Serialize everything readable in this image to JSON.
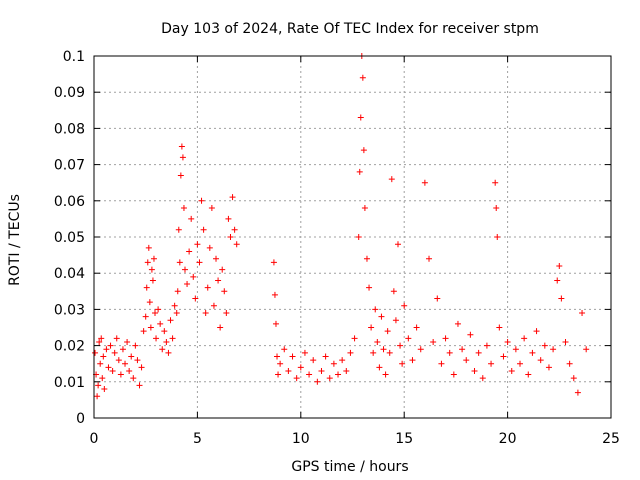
{
  "chart_data": {
    "type": "scatter",
    "title": "Day 103 of 2024, Rate Of TEC Index for receiver stpm",
    "xlabel": "GPS time / hours",
    "ylabel": "ROTI / TECUs",
    "xlim": [
      0,
      25
    ],
    "ylim": [
      0,
      0.1
    ],
    "xticks": [
      0,
      5,
      10,
      15,
      20,
      25
    ],
    "yticks": [
      0,
      0.01,
      0.02,
      0.03,
      0.04,
      0.05,
      0.06,
      0.07,
      0.08,
      0.09,
      0.1
    ],
    "grid": true,
    "legend": "none",
    "marker": "+",
    "series_color": "#ff0000",
    "series": [
      {
        "points": [
          [
            0.05,
            0.018
          ],
          [
            0.1,
            0.012
          ],
          [
            0.15,
            0.006
          ],
          [
            0.2,
            0.009
          ],
          [
            0.25,
            0.021
          ],
          [
            0.3,
            0.015
          ],
          [
            0.35,
            0.022
          ],
          [
            0.4,
            0.011
          ],
          [
            0.45,
            0.017
          ],
          [
            0.5,
            0.008
          ],
          [
            0.6,
            0.019
          ],
          [
            0.7,
            0.014
          ],
          [
            0.8,
            0.02
          ],
          [
            0.9,
            0.013
          ],
          [
            1.0,
            0.018
          ],
          [
            1.1,
            0.022
          ],
          [
            1.2,
            0.016
          ],
          [
            1.3,
            0.012
          ],
          [
            1.4,
            0.019
          ],
          [
            1.5,
            0.015
          ],
          [
            1.6,
            0.021
          ],
          [
            1.7,
            0.013
          ],
          [
            1.8,
            0.017
          ],
          [
            1.9,
            0.011
          ],
          [
            2.0,
            0.02
          ],
          [
            2.1,
            0.016
          ],
          [
            2.2,
            0.009
          ],
          [
            2.3,
            0.014
          ],
          [
            2.4,
            0.024
          ],
          [
            2.5,
            0.028
          ],
          [
            2.55,
            0.036
          ],
          [
            2.6,
            0.043
          ],
          [
            2.65,
            0.047
          ],
          [
            2.7,
            0.032
          ],
          [
            2.75,
            0.025
          ],
          [
            2.8,
            0.041
          ],
          [
            2.85,
            0.038
          ],
          [
            2.9,
            0.044
          ],
          [
            2.95,
            0.029
          ],
          [
            3.0,
            0.022
          ],
          [
            3.1,
            0.03
          ],
          [
            3.2,
            0.026
          ],
          [
            3.3,
            0.019
          ],
          [
            3.4,
            0.024
          ],
          [
            3.5,
            0.021
          ],
          [
            3.6,
            0.018
          ],
          [
            3.7,
            0.027
          ],
          [
            3.8,
            0.022
          ],
          [
            3.9,
            0.031
          ],
          [
            4.0,
            0.029
          ],
          [
            4.05,
            0.035
          ],
          [
            4.1,
            0.052
          ],
          [
            4.15,
            0.043
          ],
          [
            4.2,
            0.067
          ],
          [
            4.25,
            0.075
          ],
          [
            4.3,
            0.072
          ],
          [
            4.35,
            0.058
          ],
          [
            4.4,
            0.041
          ],
          [
            4.5,
            0.037
          ],
          [
            4.6,
            0.046
          ],
          [
            4.7,
            0.055
          ],
          [
            4.8,
            0.039
          ],
          [
            4.9,
            0.033
          ],
          [
            5.0,
            0.048
          ],
          [
            5.1,
            0.043
          ],
          [
            5.2,
            0.06
          ],
          [
            5.3,
            0.052
          ],
          [
            5.4,
            0.029
          ],
          [
            5.5,
            0.036
          ],
          [
            5.6,
            0.047
          ],
          [
            5.7,
            0.058
          ],
          [
            5.8,
            0.031
          ],
          [
            5.9,
            0.044
          ],
          [
            6.0,
            0.038
          ],
          [
            6.1,
            0.025
          ],
          [
            6.2,
            0.041
          ],
          [
            6.3,
            0.035
          ],
          [
            6.4,
            0.029
          ],
          [
            6.5,
            0.055
          ],
          [
            6.6,
            0.05
          ],
          [
            6.7,
            0.061
          ],
          [
            6.8,
            0.052
          ],
          [
            6.9,
            0.048
          ],
          [
            8.7,
            0.043
          ],
          [
            8.75,
            0.034
          ],
          [
            8.8,
            0.026
          ],
          [
            8.85,
            0.017
          ],
          [
            8.9,
            0.012
          ],
          [
            9.0,
            0.015
          ],
          [
            9.2,
            0.019
          ],
          [
            9.4,
            0.013
          ],
          [
            9.6,
            0.017
          ],
          [
            9.8,
            0.011
          ],
          [
            10.0,
            0.014
          ],
          [
            10.2,
            0.018
          ],
          [
            10.4,
            0.012
          ],
          [
            10.6,
            0.016
          ],
          [
            10.8,
            0.01
          ],
          [
            11.0,
            0.013
          ],
          [
            11.2,
            0.017
          ],
          [
            11.4,
            0.011
          ],
          [
            11.6,
            0.015
          ],
          [
            11.8,
            0.012
          ],
          [
            12.0,
            0.016
          ],
          [
            12.2,
            0.013
          ],
          [
            12.4,
            0.018
          ],
          [
            12.6,
            0.022
          ],
          [
            12.8,
            0.05
          ],
          [
            12.85,
            0.068
          ],
          [
            12.9,
            0.083
          ],
          [
            12.95,
            0.1
          ],
          [
            13.0,
            0.094
          ],
          [
            13.05,
            0.074
          ],
          [
            13.1,
            0.058
          ],
          [
            13.2,
            0.044
          ],
          [
            13.3,
            0.036
          ],
          [
            13.4,
            0.025
          ],
          [
            13.5,
            0.018
          ],
          [
            13.6,
            0.03
          ],
          [
            13.7,
            0.021
          ],
          [
            13.8,
            0.014
          ],
          [
            13.9,
            0.028
          ],
          [
            14.0,
            0.019
          ],
          [
            14.1,
            0.012
          ],
          [
            14.2,
            0.024
          ],
          [
            14.3,
            0.018
          ],
          [
            14.4,
            0.066
          ],
          [
            14.5,
            0.035
          ],
          [
            14.6,
            0.027
          ],
          [
            14.7,
            0.048
          ],
          [
            14.8,
            0.02
          ],
          [
            14.9,
            0.015
          ],
          [
            15.0,
            0.031
          ],
          [
            15.2,
            0.022
          ],
          [
            15.4,
            0.016
          ],
          [
            15.6,
            0.025
          ],
          [
            15.8,
            0.019
          ],
          [
            16.0,
            0.065
          ],
          [
            16.2,
            0.044
          ],
          [
            16.4,
            0.021
          ],
          [
            16.6,
            0.033
          ],
          [
            16.8,
            0.015
          ],
          [
            17.0,
            0.022
          ],
          [
            17.2,
            0.018
          ],
          [
            17.4,
            0.012
          ],
          [
            17.6,
            0.026
          ],
          [
            17.8,
            0.019
          ],
          [
            18.0,
            0.016
          ],
          [
            18.2,
            0.023
          ],
          [
            18.4,
            0.013
          ],
          [
            18.6,
            0.018
          ],
          [
            18.8,
            0.011
          ],
          [
            19.0,
            0.02
          ],
          [
            19.2,
            0.015
          ],
          [
            19.4,
            0.065
          ],
          [
            19.45,
            0.058
          ],
          [
            19.5,
            0.05
          ],
          [
            19.6,
            0.025
          ],
          [
            19.8,
            0.017
          ],
          [
            20.0,
            0.021
          ],
          [
            20.2,
            0.013
          ],
          [
            20.4,
            0.019
          ],
          [
            20.6,
            0.015
          ],
          [
            20.8,
            0.022
          ],
          [
            21.0,
            0.012
          ],
          [
            21.2,
            0.018
          ],
          [
            21.4,
            0.024
          ],
          [
            21.6,
            0.016
          ],
          [
            21.8,
            0.02
          ],
          [
            22.0,
            0.014
          ],
          [
            22.2,
            0.019
          ],
          [
            22.4,
            0.038
          ],
          [
            22.5,
            0.042
          ],
          [
            22.6,
            0.033
          ],
          [
            22.8,
            0.021
          ],
          [
            23.0,
            0.015
          ],
          [
            23.2,
            0.011
          ],
          [
            23.4,
            0.007
          ],
          [
            23.6,
            0.029
          ],
          [
            23.8,
            0.019
          ]
        ]
      }
    ]
  }
}
